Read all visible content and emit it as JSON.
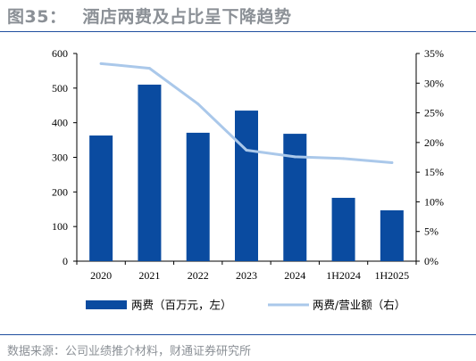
{
  "header": {
    "figure_number": "图35：",
    "title": "酒店两费及占比呈下降趋势"
  },
  "footer": {
    "source": "数据来源：公司业绩推介材料，财通证券研究所"
  },
  "colors": {
    "bar": "#0a4ba0",
    "line": "#aac8ea",
    "rule": "#1f4e9e",
    "title": "#8b9096"
  },
  "chart_data": {
    "type": "bar+line",
    "categories": [
      "2020",
      "2021",
      "2022",
      "2023",
      "2024",
      "1H2024",
      "1H2025"
    ],
    "series": [
      {
        "name": "两费（百万元，左）",
        "type": "bar",
        "axis": "left",
        "values": [
          363,
          510,
          371,
          435,
          368,
          183,
          147
        ]
      },
      {
        "name": "两费/营业额（右）",
        "type": "line",
        "axis": "right",
        "values": [
          33.3,
          32.5,
          26.5,
          18.7,
          17.6,
          17.3,
          16.6
        ]
      }
    ],
    "y_left": {
      "min": 0,
      "max": 600,
      "ticks": [
        "0",
        "100",
        "200",
        "300",
        "400",
        "500",
        "600"
      ]
    },
    "y_right": {
      "min": 0,
      "max": 35,
      "ticks": [
        "0%",
        "5%",
        "10%",
        "15%",
        "20%",
        "25%",
        "30%",
        "35%"
      ]
    },
    "grid": false,
    "legend_position": "bottom"
  }
}
